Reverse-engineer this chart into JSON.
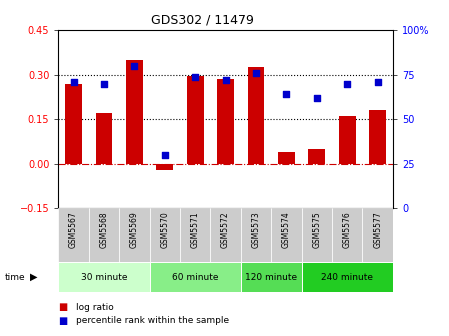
{
  "title": "GDS302 / 11479",
  "samples": [
    "GSM5567",
    "GSM5568",
    "GSM5569",
    "GSM5570",
    "GSM5571",
    "GSM5572",
    "GSM5573",
    "GSM5574",
    "GSM5575",
    "GSM5576",
    "GSM5577"
  ],
  "log_ratio": [
    0.27,
    0.17,
    0.35,
    -0.02,
    0.295,
    0.285,
    0.325,
    0.04,
    0.05,
    0.16,
    0.18
  ],
  "percentile": [
    71,
    70,
    80,
    30,
    74,
    72,
    76,
    64,
    62,
    70,
    71
  ],
  "groups": [
    {
      "label": "30 minute",
      "start": 0,
      "end": 3,
      "color": "#ccffcc"
    },
    {
      "label": "60 minute",
      "start": 3,
      "end": 6,
      "color": "#88ee88"
    },
    {
      "label": "120 minute",
      "start": 6,
      "end": 8,
      "color": "#55dd55"
    },
    {
      "label": "240 minute",
      "start": 8,
      "end": 11,
      "color": "#22cc22"
    }
  ],
  "bar_color": "#cc0000",
  "dot_color": "#0000cc",
  "ylim_left": [
    -0.15,
    0.45
  ],
  "ylim_right": [
    0,
    100
  ],
  "yticks_left": [
    -0.15,
    0,
    0.15,
    0.3,
    0.45
  ],
  "yticks_right": [
    0,
    25,
    50,
    75,
    100
  ],
  "hlines": [
    0.15,
    0.3
  ],
  "zero_line": 0.0,
  "bg_color": "#ffffff",
  "plot_bg": "#ffffff",
  "label_bg": "#cccccc",
  "time_label": "time",
  "legend_items": [
    {
      "color": "#cc0000",
      "label": "log ratio"
    },
    {
      "color": "#0000cc",
      "label": "percentile rank within the sample"
    }
  ]
}
